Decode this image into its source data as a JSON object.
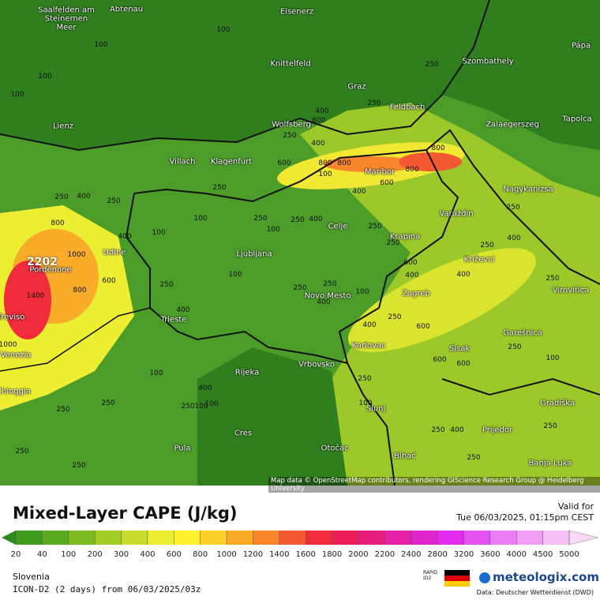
{
  "map": {
    "cities": [
      "Saalfelden am Steinernen Meer",
      "Abtenau",
      "Eisenerz",
      "Knittelfeld",
      "Graz",
      "Szombathely",
      "Pápa",
      "Feldbach",
      "Lienz",
      "Wolfsberg",
      "Zalaegerszeg",
      "Tapolca",
      "Villach",
      "Klagenfurt",
      "Maribor",
      "Nagykanizsa",
      "Varaždin",
      "Celje",
      "Krapina",
      "Udine",
      "Pordenone",
      "Ljubljana",
      "Križevci",
      "Zagreb",
      "Novo Mesto",
      "Virovitica",
      "Treviso",
      "Trieste",
      "Karlovac",
      "Garešnica",
      "Sisak",
      "Venezia",
      "Rijeka",
      "Vrbovsko",
      "Chioggia",
      "Gradiška",
      "Slunj",
      "Prijedor",
      "Cres",
      "Pula",
      "Otočac",
      "Bihać",
      "Banja Luka"
    ],
    "contour_labels": [
      "100",
      "100",
      "100",
      "100",
      "250",
      "250",
      "400",
      "600",
      "400",
      "100",
      "250",
      "600",
      "800",
      "600",
      "800",
      "800",
      "800",
      "250",
      "250",
      "400",
      "250",
      "100",
      "250",
      "250",
      "100",
      "400",
      "250",
      "400",
      "400",
      "100",
      "250",
      "600",
      "800",
      "1000",
      "600",
      "1400",
      "800",
      "400",
      "250",
      "100",
      "250",
      "400",
      "250",
      "100",
      "400",
      "250",
      "400",
      "400",
      "250",
      "400",
      "600",
      "250",
      "100",
      "250",
      "250",
      "400",
      "100",
      "250",
      "1000",
      "100",
      "250",
      "250",
      "100",
      "250",
      "600",
      "250",
      "250",
      "400",
      "600",
      "100",
      "250",
      "250",
      "250"
    ],
    "max_label": "2202",
    "attribution": "Map data © OpenStreetMap contributors, rendering GIScience Research Group @ Heidelberg University"
  },
  "footer": {
    "title": "Mixed-Layer CAPE (J/kg)",
    "valid_label": "Valid for",
    "valid_time": "Tue 06/03/2025, 01:15pm CEST",
    "region": "Slovenia",
    "model": "ICON-D2 (2 days) from 06/03/2025/03z",
    "rapid_label": "RAPID ID2",
    "brand": "meteologix.com",
    "source": "Data: Deutscher Wetterdienst (DWD)"
  },
  "legend": {
    "ticks": [
      20,
      40,
      100,
      200,
      300,
      400,
      600,
      800,
      1000,
      1200,
      1400,
      1600,
      1800,
      2000,
      2200,
      2400,
      2800,
      3200,
      3600,
      4000,
      4500,
      5000
    ],
    "colors": [
      "#2d8a1c",
      "#3f9a1e",
      "#5aab20",
      "#7cbc22",
      "#a2cc26",
      "#c8dc2c",
      "#ecee32",
      "#fff12e",
      "#fcd12a",
      "#f9ac2a",
      "#f7862c",
      "#f45a32",
      "#f02c3c",
      "#ec1f58",
      "#e81e7c",
      "#e420a4",
      "#e024cc",
      "#e02aee",
      "#e452f2",
      "#ea7cf4",
      "#f09ef4",
      "#f6c0f6",
      "#f9d8f8"
    ]
  }
}
